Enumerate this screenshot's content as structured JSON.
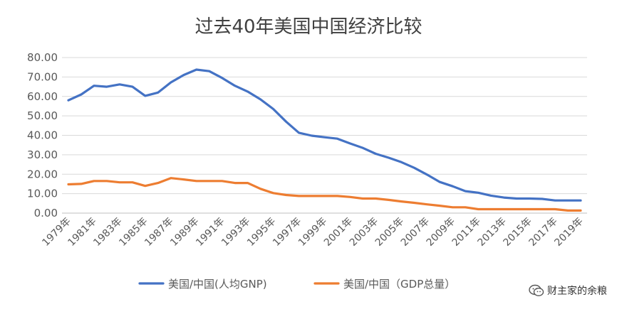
{
  "watermark": {
    "text": "财主家的余粮",
    "icon": "wechat-icon"
  },
  "chart_data": {
    "type": "line",
    "title": "过去40年美国中国经济比较",
    "xlabel": "",
    "ylabel": "",
    "ylim": [
      0,
      80
    ],
    "yticks": [
      "0.00",
      "10.00",
      "20.00",
      "30.00",
      "40.00",
      "50.00",
      "60.00",
      "70.00",
      "80.00"
    ],
    "x": [
      "1979年",
      "1980年",
      "1981年",
      "1982年",
      "1983年",
      "1984年",
      "1985年",
      "1986年",
      "1987年",
      "1988年",
      "1989年",
      "1990年",
      "1991年",
      "1992年",
      "1993年",
      "1994年",
      "1995年",
      "1996年",
      "1997年",
      "1998年",
      "1999年",
      "2000年",
      "2001年",
      "2002年",
      "2003年",
      "2004年",
      "2005年",
      "2006年",
      "2007年",
      "2008年",
      "2009年",
      "2010年",
      "2011年",
      "2012年",
      "2013年",
      "2014年",
      "2015年",
      "2016年",
      "2017年",
      "2018年",
      "2019年"
    ],
    "xtick_labels": [
      "1979年",
      "1981年",
      "1983年",
      "1985年",
      "1987年",
      "1989年",
      "1991年",
      "1993年",
      "1995年",
      "1997年",
      "1999年",
      "2001年",
      "2003年",
      "2005年",
      "2007年",
      "2009年",
      "2011年",
      "2013年",
      "2015年",
      "2017年",
      "2019年"
    ],
    "grid": "horizontal",
    "legend_position": "bottom",
    "series": [
      {
        "name": "美国/中国(人均GNP)",
        "color": "#4472C4",
        "values": [
          58.0,
          61.0,
          65.5,
          65.0,
          66.2,
          65.0,
          60.3,
          62.0,
          67.2,
          71.0,
          73.8,
          73.0,
          69.5,
          65.5,
          62.5,
          58.5,
          53.5,
          47.0,
          41.3,
          39.8,
          39.0,
          38.3,
          35.8,
          33.5,
          30.5,
          28.5,
          26.2,
          23.3,
          19.8,
          16.0,
          13.8,
          11.3,
          10.5,
          9.0,
          8.0,
          7.5,
          7.5,
          7.3,
          6.5,
          6.5,
          6.5
        ]
      },
      {
        "name": "美国/中国（GDP总量）",
        "color": "#ED7D31",
        "values": [
          14.8,
          15.0,
          16.5,
          16.5,
          15.8,
          15.8,
          14.0,
          15.5,
          18.0,
          17.3,
          16.5,
          16.5,
          16.5,
          15.5,
          15.5,
          12.5,
          10.3,
          9.3,
          8.8,
          8.8,
          8.8,
          8.8,
          8.3,
          7.5,
          7.5,
          6.8,
          6.0,
          5.3,
          4.5,
          3.8,
          3.0,
          3.0,
          2.0,
          2.0,
          2.0,
          2.0,
          2.0,
          2.0,
          2.0,
          1.3,
          1.3
        ]
      }
    ]
  }
}
